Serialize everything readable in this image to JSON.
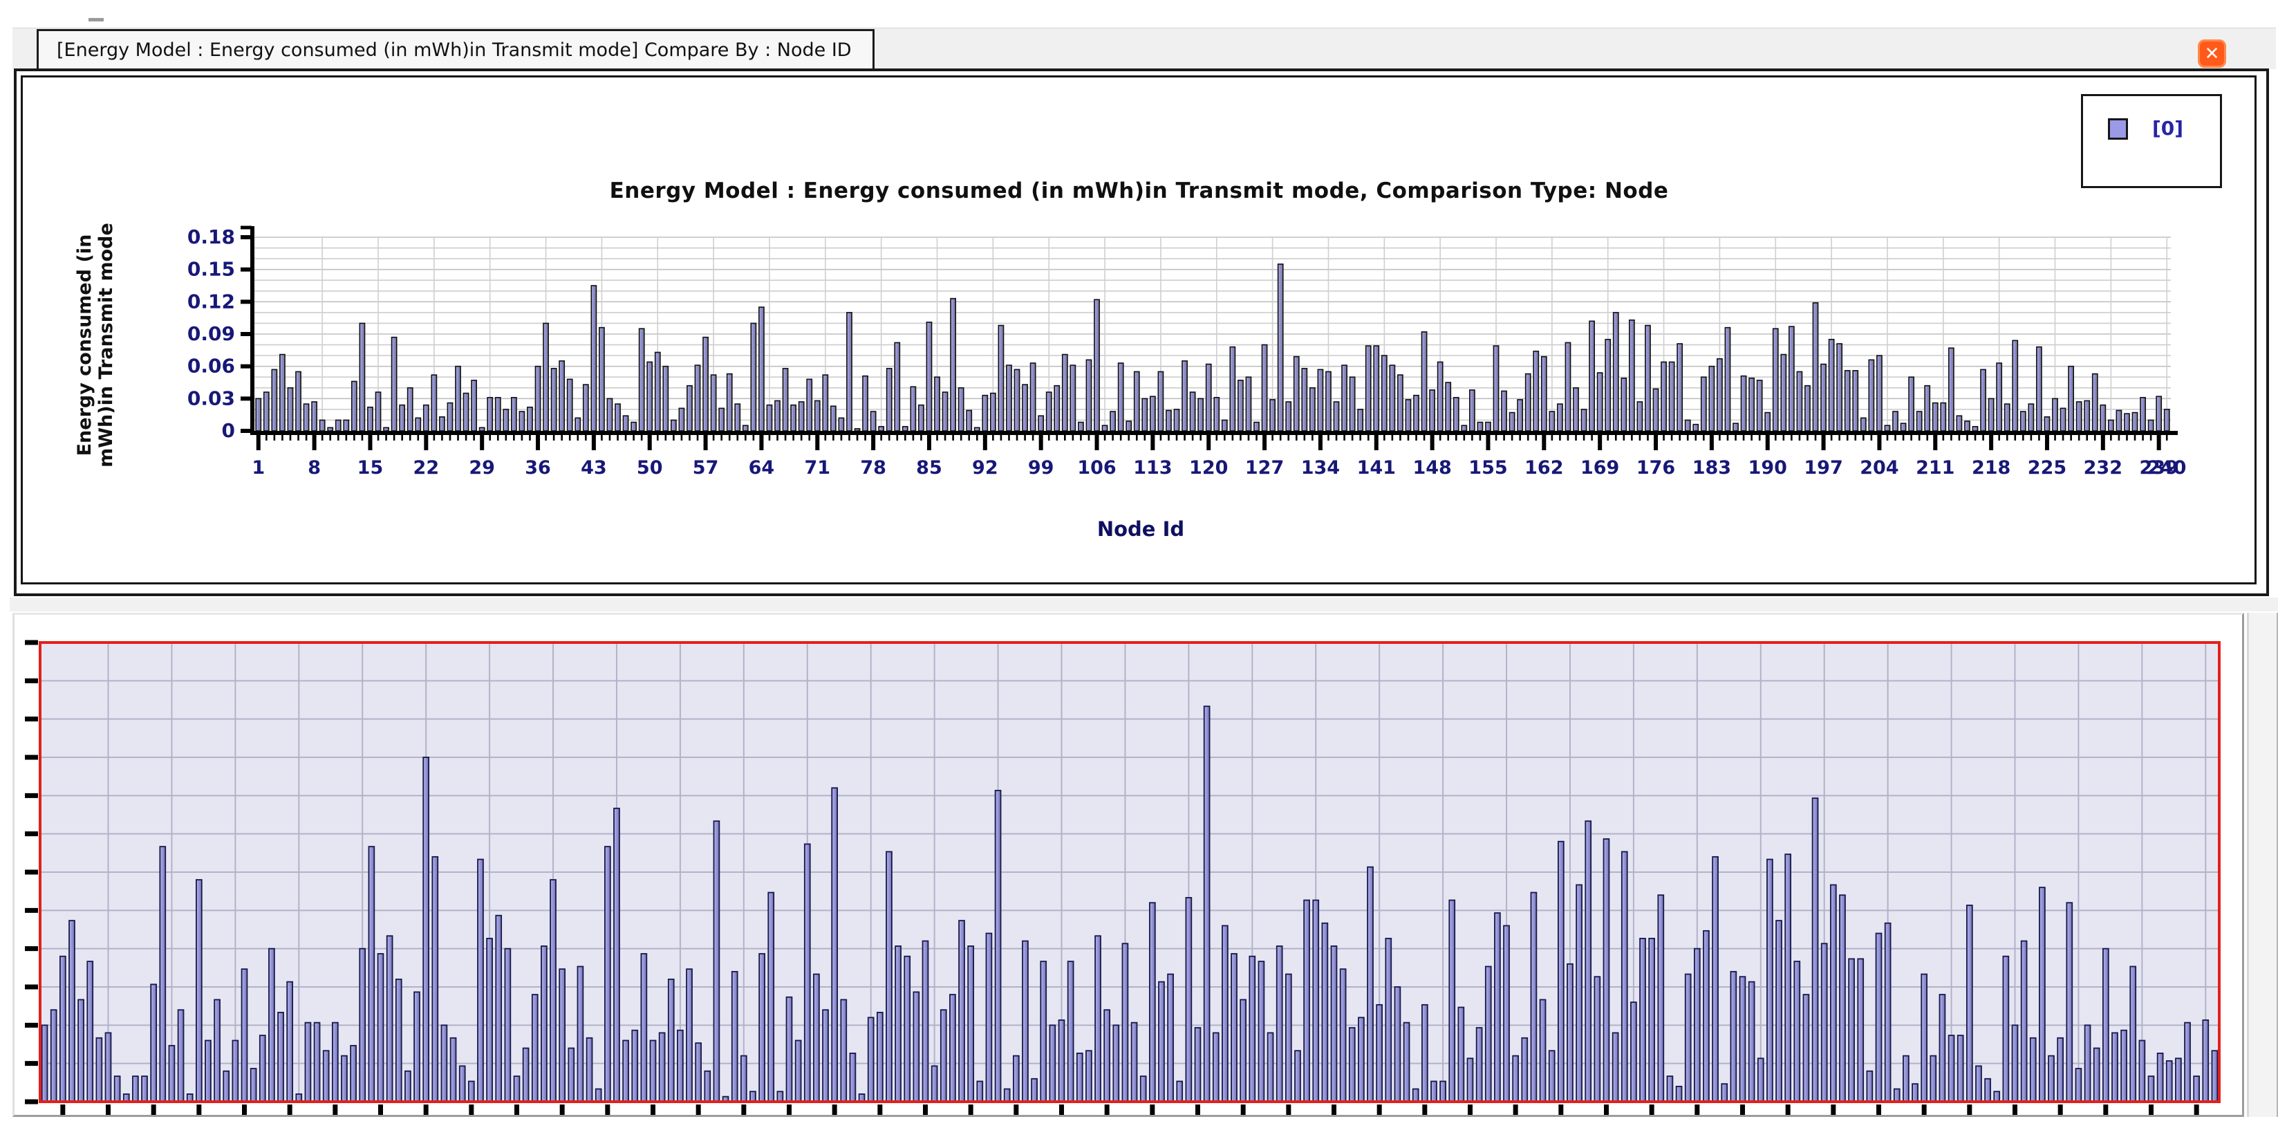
{
  "window": {
    "tab_title": "[Energy Model :  Energy consumed (in mWh)in Transmit mode] Compare By : Node ID",
    "close_icon": "✕"
  },
  "legend": {
    "series_label": "[0]",
    "swatch_color": "#9a9ae8",
    "position": "top-right"
  },
  "chart_data": {
    "type": "bar",
    "title": "Energy Model :  Energy consumed (in mWh)in Transmit mode, Comparison Type: Node",
    "xlabel": "Node Id",
    "ylabel_lines": [
      "Energy consumed (in",
      "mWh)in Transmit mode"
    ],
    "series_name": "[0]",
    "x_first": 1,
    "x_last": 240,
    "ylim": [
      0,
      0.18
    ],
    "ytick_labels": [
      "0",
      "0.03",
      "0.06",
      "0.09",
      "0.12",
      "0.15",
      "0.18"
    ],
    "xtick_step": 7,
    "xtick_labels": [
      "1",
      "8",
      "15",
      "22",
      "29",
      "36",
      "43",
      "50",
      "57",
      "64",
      "71",
      "78",
      "85",
      "92",
      "99",
      "106",
      "113",
      "120",
      "127",
      "134",
      "141",
      "148",
      "155",
      "162",
      "169",
      "176",
      "183",
      "190",
      "197",
      "204",
      "211",
      "218",
      "225",
      "232"
    ],
    "xtick_overlap_labels": [
      "239",
      "240"
    ],
    "grid": true,
    "values": [
      0.03,
      0.036,
      0.057,
      0.071,
      0.04,
      0.055,
      0.025,
      0.027,
      0.01,
      0.003,
      0.01,
      0.01,
      0.046,
      0.1,
      0.022,
      0.036,
      0.003,
      0.087,
      0.024,
      0.04,
      0.012,
      0.024,
      0.052,
      0.013,
      0.026,
      0.06,
      0.035,
      0.047,
      0.003,
      0.031,
      0.031,
      0.02,
      0.031,
      0.018,
      0.022,
      0.06,
      0.1,
      0.058,
      0.065,
      0.048,
      0.012,
      0.043,
      0.135,
      0.096,
      0.03,
      0.025,
      0.014,
      0.008,
      0.095,
      0.064,
      0.073,
      0.06,
      0.01,
      0.021,
      0.042,
      0.061,
      0.087,
      0.052,
      0.021,
      0.053,
      0.025,
      0.005,
      0.1,
      0.115,
      0.024,
      0.028,
      0.058,
      0.024,
      0.027,
      0.048,
      0.028,
      0.052,
      0.023,
      0.012,
      0.11,
      0.002,
      0.051,
      0.018,
      0.004,
      0.058,
      0.082,
      0.004,
      0.041,
      0.024,
      0.101,
      0.05,
      0.036,
      0.123,
      0.04,
      0.019,
      0.003,
      0.033,
      0.035,
      0.098,
      0.061,
      0.057,
      0.043,
      0.063,
      0.014,
      0.036,
      0.042,
      0.071,
      0.061,
      0.008,
      0.066,
      0.122,
      0.005,
      0.018,
      0.063,
      0.009,
      0.055,
      0.03,
      0.032,
      0.055,
      0.019,
      0.02,
      0.065,
      0.036,
      0.03,
      0.062,
      0.031,
      0.01,
      0.078,
      0.047,
      0.05,
      0.008,
      0.08,
      0.029,
      0.155,
      0.027,
      0.069,
      0.058,
      0.04,
      0.057,
      0.055,
      0.027,
      0.061,
      0.05,
      0.02,
      0.079,
      0.079,
      0.07,
      0.061,
      0.052,
      0.029,
      0.033,
      0.092,
      0.038,
      0.064,
      0.045,
      0.031,
      0.005,
      0.038,
      0.008,
      0.008,
      0.079,
      0.037,
      0.017,
      0.029,
      0.053,
      0.074,
      0.069,
      0.018,
      0.025,
      0.082,
      0.04,
      0.02,
      0.102,
      0.054,
      0.085,
      0.11,
      0.049,
      0.103,
      0.027,
      0.098,
      0.039,
      0.064,
      0.064,
      0.081,
      0.01,
      0.006,
      0.05,
      0.06,
      0.067,
      0.096,
      0.007,
      0.051,
      0.049,
      0.047,
      0.017,
      0.095,
      0.071,
      0.097,
      0.055,
      0.042,
      0.119,
      0.062,
      0.085,
      0.081,
      0.056,
      0.056,
      0.012,
      0.066,
      0.07,
      0.005,
      0.018,
      0.007,
      0.05,
      0.018,
      0.042,
      0.026,
      0.026,
      0.077,
      0.014,
      0.009,
      0.004,
      0.057,
      0.03,
      0.063,
      0.025,
      0.084,
      0.018,
      0.025,
      0.078,
      0.013,
      0.03,
      0.021,
      0.06,
      0.027,
      0.028,
      0.053,
      0.024,
      0.01,
      0.019,
      0.016,
      0.017,
      0.031,
      0.01,
      0.032,
      0.02
    ],
    "minimap": {
      "background": "#e6e6f3",
      "border_color": "#e3201b",
      "h_divisions": 12,
      "v_gridline_step": 7,
      "bottom_tick_step": 5
    }
  },
  "colors": {
    "close_button": "#ff5a1a",
    "bar_fill": "#9090d0",
    "bar_edge": "#111111",
    "grid_line": "#c8c8c8",
    "tick_label": "#181878",
    "axis": "#000000"
  }
}
